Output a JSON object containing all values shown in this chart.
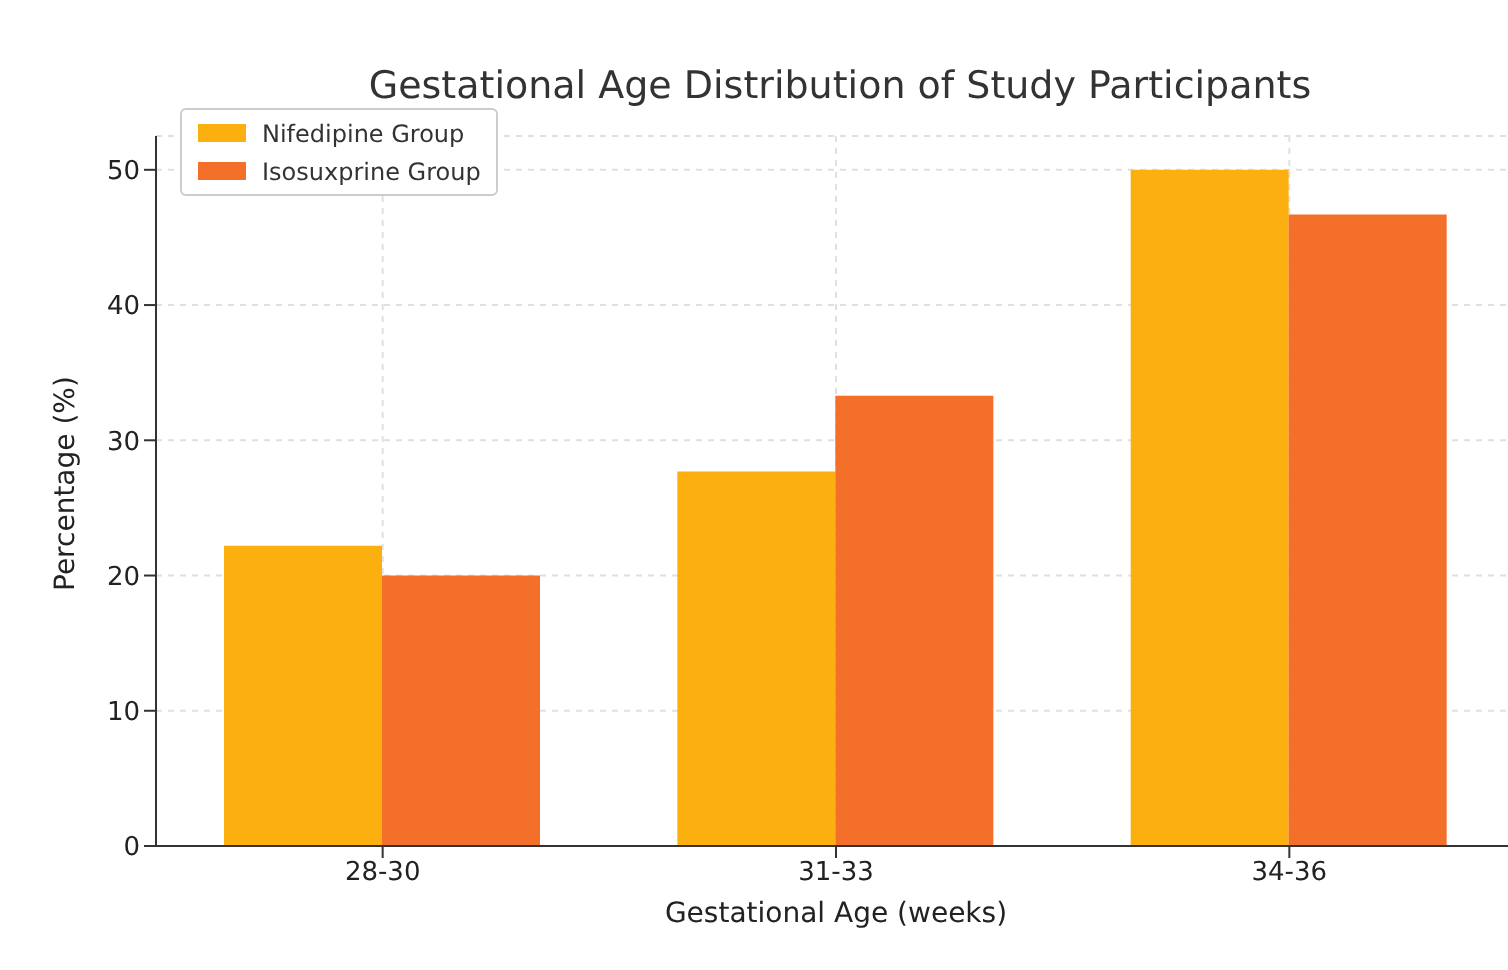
{
  "chart_data": {
    "type": "bar",
    "title": "Gestational Age Distribution of Study Participants",
    "xlabel": "Gestational Age (weeks)",
    "ylabel": "Percentage (%)",
    "categories": [
      "28-30",
      "31-33",
      "34-36"
    ],
    "series": [
      {
        "name": "Nifedipine Group",
        "color": "#fbb00f",
        "values": [
          22.2,
          27.7,
          50.0
        ]
      },
      {
        "name": "Isosuxprine Group",
        "color": "#f46f2a",
        "values": [
          20.0,
          33.3,
          46.7
        ]
      }
    ],
    "ylim": [
      0,
      52.5
    ],
    "yticks": [
      0,
      10,
      20,
      30,
      40,
      50
    ],
    "grid": true,
    "legend": "top left"
  }
}
